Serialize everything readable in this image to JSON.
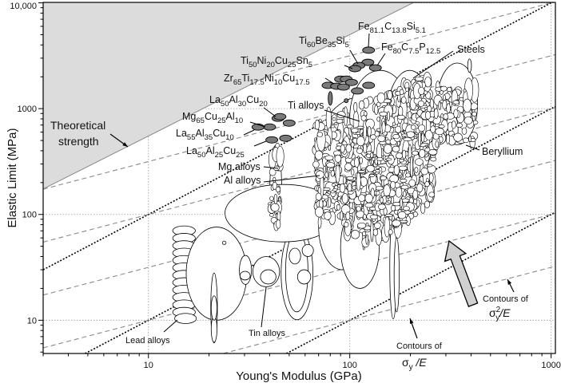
{
  "chart_data": {
    "type": "scatter",
    "title": "",
    "xlabel": "Young's Modulus (GPa)",
    "ylabel": "Elastic Limit (MPa)",
    "xscale": "log",
    "yscale": "log",
    "xlim": [
      3,
      1050
    ],
    "ylim": [
      4.85,
      10100
    ],
    "xticks": [
      10,
      100,
      1000
    ],
    "xtick_labels": [
      "10",
      "100",
      "1000"
    ],
    "yticks": [
      10,
      100,
      1000,
      10000
    ],
    "ytick_labels": [
      "10",
      "100",
      "1000",
      "10,000"
    ],
    "grid": true,
    "colors": {
      "shade": "#dcdcdc",
      "glass_fill": "#7a7a7a",
      "contour_gray": "#8a8a8a",
      "contour_black": "#000000",
      "arrow_fill": "#d0d0d0"
    },
    "theoretical_strength": {
      "label_lines": [
        "Theoretical",
        "strength"
      ],
      "points": [
        [
          3,
          174
        ],
        [
          206,
          10000
        ]
      ]
    },
    "contours_sigma_over_E": {
      "values": [
        0.0001,
        0.001,
        0.01
      ],
      "label_line1": "Contours of",
      "label_sym": "σ",
      "label_sub": "y",
      "label_rest": " /E"
    },
    "contours_sigma2_over_E": {
      "values": [
        1,
        10,
        100,
        1000,
        10000,
        100000
      ],
      "label_line1": "Contours of",
      "label_sym": "σ",
      "label_sub": "y",
      "label_sup": "2",
      "label_rest": "/E"
    },
    "families": [
      {
        "name": "Lead alloys",
        "envelopes": [
          {
            "E": [
              13.2,
              17.1
            ],
            "s": [
              11,
              76
            ],
            "stack": 12
          },
          {
            "E": [
              13.5,
              17.3
            ],
            "s": [
              9.3,
              11.6
            ]
          }
        ]
      },
      {
        "name": "",
        "envelopes": [
          {
            "E": [
              15.4,
              30.8
            ],
            "s": [
              10,
              76
            ]
          },
          {
            "E": [
              23.3,
              24.3
            ],
            "s": [
              52,
              56
            ]
          }
        ]
      },
      {
        "name": "",
        "envelopes": [
          {
            "E": [
              20.4,
              22
            ],
            "s": [
              6.1,
              28
            ]
          },
          {
            "E": [
              20.5,
              21.9
            ],
            "s": [
              6.2,
              11
            ]
          },
          {
            "E": [
              20.5,
              21.9
            ],
            "s": [
              10,
              17
            ]
          }
        ]
      },
      {
        "name": "Tin alloys",
        "envelopes": [
          {
            "E": [
              28.3,
              32.5
            ],
            "s": [
              21.8,
              41
            ]
          },
          {
            "E": [
              28.5,
              32
            ],
            "s": [
              24,
              29
            ]
          },
          {
            "E": [
              33,
              44.8
            ],
            "s": [
              20.7,
              40
            ]
          },
          {
            "E": [
              36,
              43
            ],
            "s": [
              22,
              30
            ]
          },
          {
            "E": [
              45.6,
              65.6
            ],
            "s": [
              10.1,
              76
            ]
          },
          {
            "E": [
              48,
              62
            ],
            "s": [
              12,
              70
            ]
          },
          {
            "E": [
              58,
              66
            ],
            "s": [
              40,
              52
            ]
          },
          {
            "E": [
              55,
              64
            ],
            "s": [
              22,
              30
            ]
          },
          {
            "E": [
              50,
              57
            ],
            "s": [
              34,
              48
            ]
          }
        ]
      },
      {
        "name": "Mg alloys",
        "envelopes": [
          {
            "E": [
              40.1,
              45.9
            ],
            "s": [
              66,
              449
            ]
          }
        ]
      },
      {
        "name": "Al alloys",
        "envelopes": [
          {
            "E": [
              24,
              90
            ],
            "s": [
              55,
              192
            ]
          }
        ]
      },
      {
        "name": "Ti alloys",
        "envelopes": [
          {
            "E": [
              67,
              200
            ],
            "s": [
              80,
              1300
            ]
          },
          {
            "E": [
              70,
              120
            ],
            "s": [
              30,
              200
            ]
          },
          {
            "E": [
              90,
              140
            ],
            "s": [
              20,
              120
            ]
          },
          {
            "E": [
              158,
              171
            ],
            "s": [
              10.3,
              98
            ]
          },
          {
            "E": [
              166,
              176
            ],
            "s": [
              12,
              60
            ]
          }
        ]
      },
      {
        "name": "Steels",
        "envelopes": [
          {
            "E": [
              100,
              200
            ],
            "s": [
              300,
              2300
            ]
          },
          {
            "E": [
              150,
              262
            ],
            "s": [
              200,
              2300
            ]
          }
        ]
      },
      {
        "name": "Beryllium",
        "envelopes": [
          {
            "E": [
              271,
              431
            ],
            "s": [
              457,
              2700
            ]
          },
          {
            "E": [
              300,
              345
            ],
            "s": [
              450,
              900
            ]
          },
          {
            "E": [
              260,
              300
            ],
            "s": [
              460,
              600
            ]
          },
          {
            "E": [
              385,
              402
            ],
            "s": [
              2200,
              2950
            ]
          }
        ]
      }
    ],
    "metallic_glasses": [
      {
        "E": 124,
        "s": 3570
      },
      {
        "E": 134,
        "s": 2430
      },
      {
        "E": 123,
        "s": 2740
      },
      {
        "E": 111,
        "s": 2560
      },
      {
        "E": 106,
        "s": 2390
      },
      {
        "E": 78,
        "s": 1660
      },
      {
        "E": 86,
        "s": 1630
      },
      {
        "E": 90,
        "s": 1900
      },
      {
        "E": 96,
        "s": 1900
      },
      {
        "E": 93,
        "s": 1600
      },
      {
        "E": 102,
        "s": 1770
      },
      {
        "E": 109,
        "s": 1470
      },
      {
        "E": 124,
        "s": 1660
      },
      {
        "E": 80,
        "s": 1250,
        "tall": true
      },
      {
        "E": 96,
        "s": 1190,
        "small": true
      },
      {
        "E": 44,
        "s": 811
      },
      {
        "E": 45,
        "s": 840
      },
      {
        "E": 50,
        "s": 730
      },
      {
        "E": 40,
        "s": 670
      },
      {
        "E": 35,
        "s": 670
      },
      {
        "E": 41,
        "s": 507
      },
      {
        "E": 48,
        "s": 525
      }
    ],
    "glass_labels": [
      {
        "parts": [
          [
            "Fe",
            0
          ],
          [
            "81.1",
            1
          ],
          [
            "C",
            0
          ],
          [
            "13.8",
            1
          ],
          [
            "Si",
            0
          ],
          [
            "5.1",
            1
          ]
        ]
      },
      {
        "parts": [
          [
            "Fe",
            0
          ],
          [
            "80",
            1
          ],
          [
            "C",
            0
          ],
          [
            "7.5",
            1
          ],
          [
            "P",
            0
          ],
          [
            "12.5",
            1
          ]
        ]
      },
      {
        "parts": [
          [
            "Ti",
            0
          ],
          [
            "60",
            1
          ],
          [
            "Be",
            0
          ],
          [
            "35",
            1
          ],
          [
            "Si",
            0
          ],
          [
            "5",
            1
          ]
        ]
      },
      {
        "parts": [
          [
            "Ti",
            0
          ],
          [
            "50",
            1
          ],
          [
            "Ni",
            0
          ],
          [
            "20",
            1
          ],
          [
            "Cu",
            0
          ],
          [
            "25",
            1
          ],
          [
            "Sn",
            0
          ],
          [
            "5",
            1
          ]
        ]
      },
      {
        "parts": [
          [
            "Zr",
            0
          ],
          [
            "65",
            1
          ],
          [
            "Ti",
            0
          ],
          [
            "17.5",
            1
          ],
          [
            "Ni",
            0
          ],
          [
            "10",
            1
          ],
          [
            "Cu",
            0
          ],
          [
            "17.5",
            1
          ]
        ]
      },
      {
        "parts": [
          [
            "La",
            0
          ],
          [
            "50",
            1
          ],
          [
            "Al",
            0
          ],
          [
            "30",
            1
          ],
          [
            "Cu",
            0
          ],
          [
            "20",
            1
          ]
        ]
      },
      {
        "parts": [
          [
            "Mg",
            0
          ],
          [
            "65",
            1
          ],
          [
            "Cu",
            0
          ],
          [
            "25",
            1
          ],
          [
            "Al",
            0
          ],
          [
            "10",
            1
          ]
        ]
      },
      {
        "parts": [
          [
            "La",
            0
          ],
          [
            "55",
            1
          ],
          [
            "Al",
            0
          ],
          [
            "35",
            1
          ],
          [
            "Cu",
            0
          ],
          [
            "10",
            1
          ]
        ]
      },
      {
        "parts": [
          [
            "La",
            0
          ],
          [
            "50",
            1
          ],
          [
            "Al",
            0
          ],
          [
            "25",
            1
          ],
          [
            "Cu",
            0
          ],
          [
            "25",
            1
          ]
        ]
      }
    ],
    "family_labels": [
      "Steels",
      "Ti alloys",
      "Beryllium",
      "Mg alloys",
      "Al alloys",
      "Lead alloys",
      "Tin alloys"
    ]
  }
}
